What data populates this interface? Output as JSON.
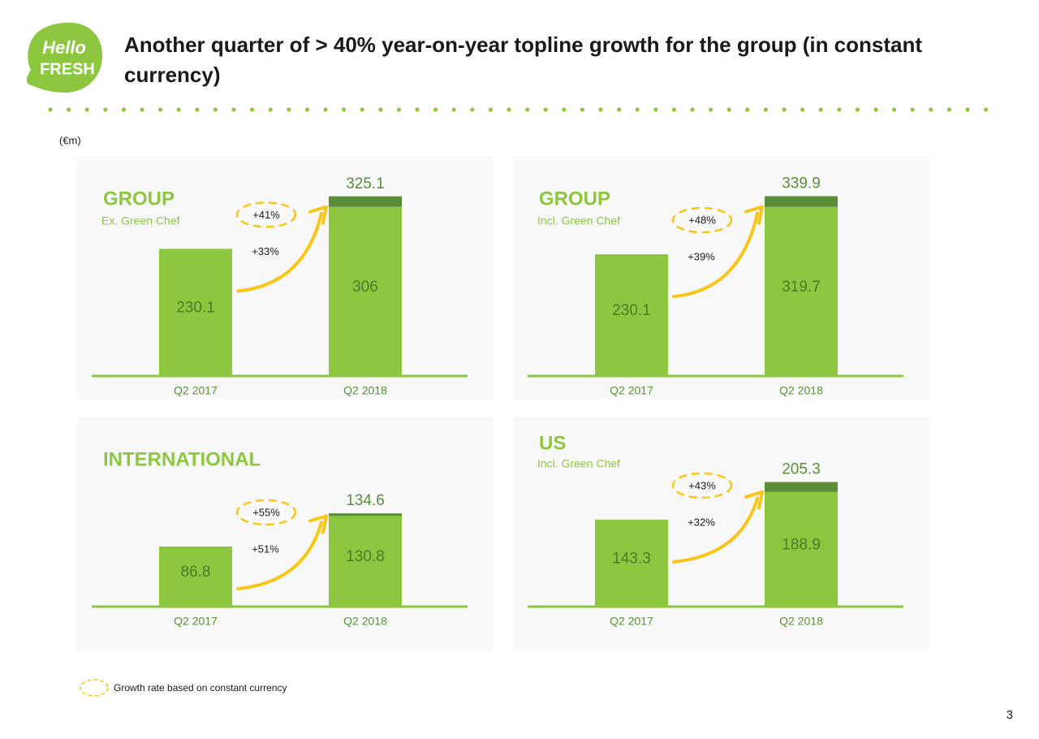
{
  "title": [
    "Another quarter of > 40% year-on-year topline growth for the group (in constant",
    "currency)"
  ],
  "logo": [
    "Hello",
    "FRESH"
  ],
  "unit": "(€m)",
  "footnote": "Growth rate based on constant currency",
  "page_number": "3",
  "chart_data": [
    {
      "type": "bar",
      "title": "GROUP",
      "subtitle": "Ex. Green Chef",
      "categories": [
        "Q2 2017",
        "Q2 2018"
      ],
      "series": [
        {
          "color": "#8dc63f",
          "values": [
            230.1,
            306.0
          ]
        },
        {
          "color": "#5a8e3a",
          "values": [
            null,
            19.1
          ]
        }
      ],
      "totals": [
        null,
        325.1
      ],
      "growth_constant_currency": "+41%",
      "growth_reported": "+33%",
      "ylim": [
        0,
        335
      ]
    },
    {
      "type": "bar",
      "title": "GROUP",
      "subtitle": "Incl. Green Chef",
      "categories": [
        "Q2 2017",
        "Q2 2018"
      ],
      "series": [
        {
          "color": "#8dc63f",
          "values": [
            230.1,
            319.7
          ]
        },
        {
          "color": "#5a8e3a",
          "values": [
            null,
            20.2
          ]
        }
      ],
      "totals": [
        null,
        339.9
      ],
      "growth_constant_currency": "+48%",
      "growth_reported": "+39%",
      "ylim": [
        0,
        350
      ]
    },
    {
      "type": "bar",
      "title": "INTERNATIONAL",
      "categories": [
        "Q2 2017",
        "Q2 2018"
      ],
      "series": [
        {
          "color": "#8dc63f",
          "values": [
            86.8,
            130.8
          ]
        },
        {
          "color": "#5a8e3a",
          "values": [
            null,
            3.8
          ]
        }
      ],
      "totals": [
        null,
        134.6
      ],
      "growth_constant_currency": "+55%",
      "growth_reported": "+51%",
      "ylim": [
        0,
        184
      ]
    },
    {
      "type": "bar",
      "title": "US",
      "subtitle": "Incl. Green Chef",
      "categories": [
        "Q2 2017",
        "Q2 2018"
      ],
      "series": [
        {
          "color": "#8dc63f",
          "values": [
            143.3,
            188.9
          ]
        },
        {
          "color": "#5a8e3a",
          "values": [
            null,
            16.4
          ]
        }
      ],
      "totals": [
        null,
        205.3
      ],
      "growth_constant_currency": "+43%",
      "growth_reported": "+32%",
      "ylim": [
        0,
        210
      ]
    }
  ]
}
